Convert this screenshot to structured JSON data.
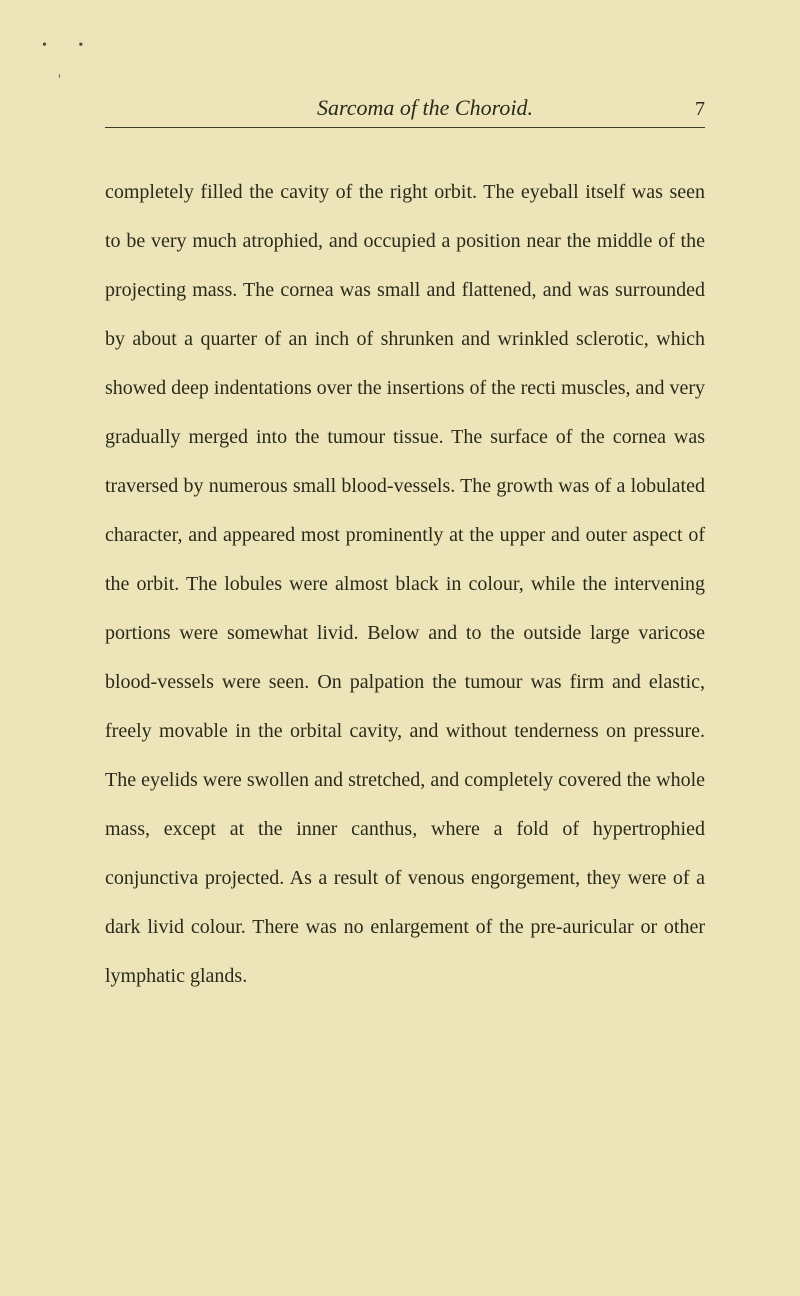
{
  "page": {
    "header_title": "Sarcoma of the Choroid.",
    "page_number": "7",
    "body_text": "completely filled the cavity of the right orbit. The eyeball itself was seen to be very much atrophied, and occupied a position near the middle of the projecting mass. The cornea was small and flattened, and was surrounded by about a quarter of an inch of shrunken and wrinkled sclerotic, which showed deep indentations over the insertions of the recti muscles, and very gradually merged into the tumour tissue. The surface of the cornea was traversed by numerous small blood-vessels. The growth was of a lobulated character, and appeared most prominently at the upper and outer aspect of the orbit. The lobules were almost black in colour, while the intervening portions were somewhat livid. Below and to the outside large varicose blood-vessels were seen. On palpation the tumour was firm and elastic, freely movable in the orbital cavity, and without tenderness on pressure. The eyelids were swollen and stretched, and completely covered the whole mass, except at the inner canthus, where a fold of hypertrophied conjunctiva projected. As a result of venous engorgement, they were of a dark livid colour. There was no enlargement of the pre-auricular or other lymphatic glands."
  },
  "style": {
    "background_color": "#ede5b9",
    "text_color": "#2a2a1a",
    "line_color": "#3a3a2a",
    "body_font_size": 20,
    "header_font_size": 22,
    "line_height": 2.45
  }
}
